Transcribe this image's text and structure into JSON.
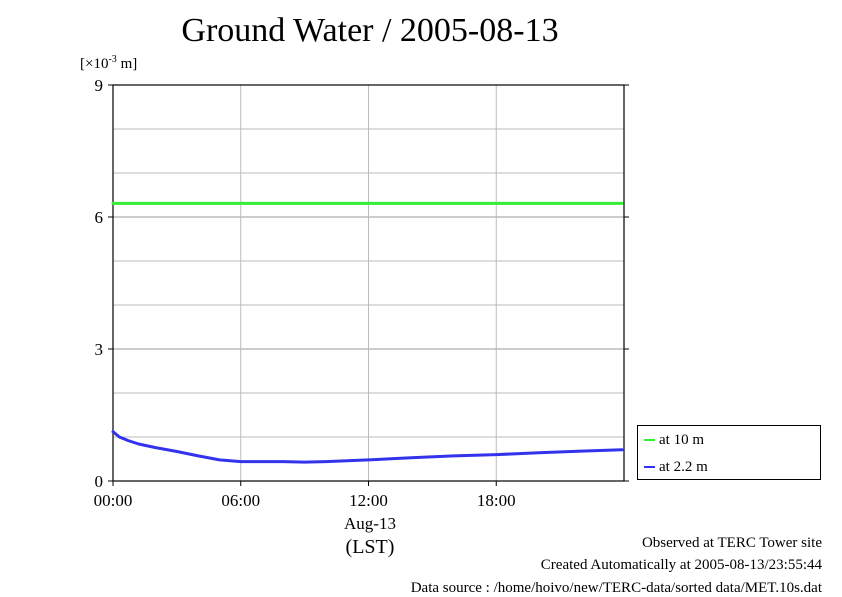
{
  "chart_data": {
    "type": "line",
    "title": "Ground Water / 2005-08-13",
    "unit_label": {
      "base": "[×10",
      "exp": "-3",
      "suffix": " m]"
    },
    "ylim": [
      0,
      9
    ],
    "yticks": [
      0,
      3,
      6,
      9
    ],
    "ygrid_minor": [
      1,
      2,
      4,
      5,
      7,
      8
    ],
    "xlim": [
      0,
      24
    ],
    "xticks": [
      {
        "value": 0,
        "label": "00:00"
      },
      {
        "value": 6,
        "label": "06:00"
      },
      {
        "value": 12,
        "label": "12:00"
      },
      {
        "value": 18,
        "label": "18:00"
      }
    ],
    "xlabel_date": "Aug-13",
    "xlabel_unit": "(LST)",
    "grid": true,
    "legend_position": "bottom-right outside",
    "series": [
      {
        "name": "at 10 m",
        "color": "#33ee33",
        "x": [
          0,
          3,
          6,
          9,
          12,
          15,
          18,
          21,
          23.9
        ],
        "y": [
          6.31,
          6.31,
          6.31,
          6.31,
          6.31,
          6.31,
          6.31,
          6.31,
          6.31
        ]
      },
      {
        "name": "at 2.2 m",
        "color": "#3333ee",
        "x": [
          0,
          0.3,
          0.7,
          1.2,
          2,
          3,
          4,
          5,
          6,
          7,
          8,
          9,
          10,
          11,
          12,
          14,
          16,
          18,
          20,
          22,
          23.9
        ],
        "y": [
          1.12,
          1.0,
          0.92,
          0.84,
          0.76,
          0.67,
          0.57,
          0.48,
          0.44,
          0.44,
          0.44,
          0.43,
          0.44,
          0.46,
          0.48,
          0.53,
          0.57,
          0.6,
          0.64,
          0.68,
          0.71
        ]
      }
    ]
  },
  "footer": {
    "line1": "Observed at TERC Tower site",
    "line2": "Created Automatically at 2005-08-13/23:55:44",
    "line3": "Data source : /home/hoivo/new/TERC-data/sorted  data/MET.10s.dat"
  }
}
